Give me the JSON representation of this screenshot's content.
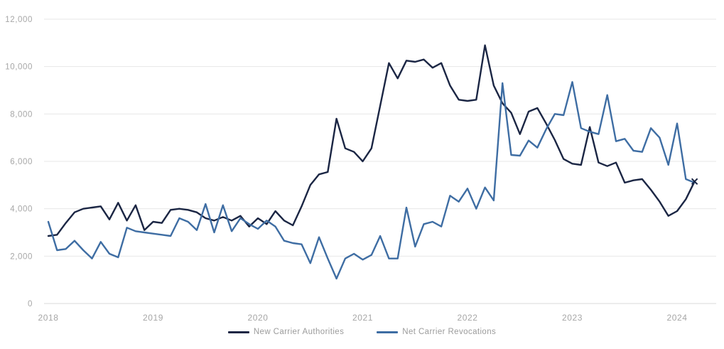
{
  "chart_data": {
    "type": "line",
    "title": "",
    "x_start": "2018-01",
    "x_frequency": "monthly",
    "x_tick_labels": [
      "2018",
      "2019",
      "2020",
      "2021",
      "2022",
      "2023",
      "2024"
    ],
    "y_ticks": [
      0,
      2000,
      4000,
      6000,
      8000,
      10000,
      12000
    ],
    "y_tick_labels": [
      "0",
      "2,000",
      "4,000",
      "6,000",
      "8,000",
      "10,000",
      "12,000"
    ],
    "ylim": [
      0,
      12000
    ],
    "grid": "horizontal",
    "legend_position": "bottom-center",
    "series": [
      {
        "name": "New Carrier Authorities",
        "color": "#1b2644",
        "end_marker": "x",
        "values": [
          2850,
          2900,
          3400,
          3850,
          4000,
          4050,
          4100,
          3550,
          4250,
          3500,
          4150,
          3100,
          3450,
          3400,
          3950,
          4000,
          3950,
          3850,
          3600,
          3500,
          3650,
          3500,
          3700,
          3250,
          3600,
          3350,
          3900,
          3500,
          3300,
          4100,
          5000,
          5450,
          5550,
          7800,
          6550,
          6400,
          6000,
          6550,
          8350,
          10150,
          9500,
          10250,
          10200,
          10300,
          9950,
          10150,
          9200,
          8600,
          8550,
          8600,
          10900,
          9200,
          8450,
          8050,
          7150,
          8100,
          8250,
          7600,
          6900,
          6100,
          5900,
          5850,
          7450,
          5950,
          5800,
          5950,
          5100,
          5200,
          5250,
          4800,
          4300,
          3700,
          3900,
          4400,
          5150
        ]
      },
      {
        "name": "Net Carrier Revocations",
        "color": "#3e6da3",
        "end_marker": "none",
        "values": [
          3450,
          2250,
          2300,
          2650,
          2250,
          1900,
          2600,
          2100,
          1950,
          3200,
          3050,
          3000,
          2950,
          2900,
          2850,
          3600,
          3450,
          3100,
          4200,
          3000,
          4150,
          3050,
          3600,
          3350,
          3150,
          3500,
          3250,
          2650,
          2550,
          2500,
          1700,
          2800,
          1900,
          1050,
          1900,
          2100,
          1850,
          2050,
          2850,
          1900,
          1900,
          4050,
          2400,
          3350,
          3450,
          3250,
          4550,
          4300,
          4850,
          4000,
          4900,
          4350,
          9300,
          6270,
          6240,
          6880,
          6580,
          7350,
          8000,
          7950,
          9350,
          7400,
          7250,
          7150,
          8800,
          6850,
          6950,
          6450,
          6400,
          7400,
          7000,
          5850,
          7600,
          5250,
          5100
        ]
      }
    ]
  },
  "colors": {
    "background": "#ffffff",
    "grid": "#e7e7e7",
    "zero_line": "#d9d9d9",
    "axis_labels": "#a6a6a6",
    "legend_text": "#9b9b9b"
  },
  "legend": {
    "items": [
      {
        "label": "New Carrier Authorities"
      },
      {
        "label": "Net Carrier Revocations"
      }
    ]
  }
}
